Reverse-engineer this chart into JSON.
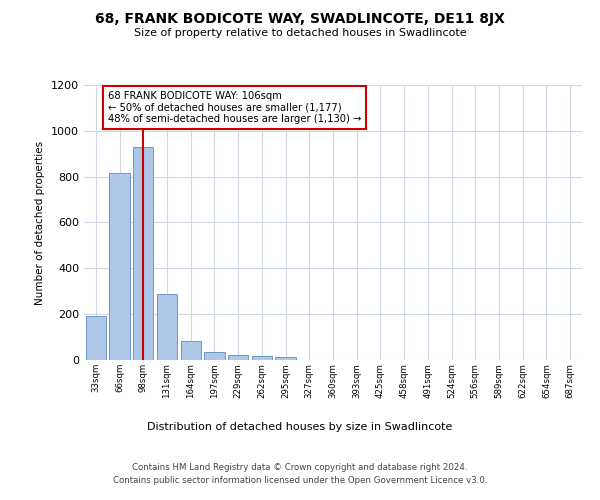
{
  "title": "68, FRANK BODICOTE WAY, SWADLINCOTE, DE11 8JX",
  "subtitle": "Size of property relative to detached houses in Swadlincote",
  "xlabel": "Distribution of detached houses by size in Swadlincote",
  "ylabel": "Number of detached properties",
  "bin_labels": [
    "33sqm",
    "66sqm",
    "98sqm",
    "131sqm",
    "164sqm",
    "197sqm",
    "229sqm",
    "262sqm",
    "295sqm",
    "327sqm",
    "360sqm",
    "393sqm",
    "425sqm",
    "458sqm",
    "491sqm",
    "524sqm",
    "556sqm",
    "589sqm",
    "622sqm",
    "654sqm",
    "687sqm"
  ],
  "bar_values": [
    190,
    815,
    930,
    290,
    85,
    35,
    20,
    18,
    12,
    0,
    0,
    0,
    0,
    0,
    0,
    0,
    0,
    0,
    0,
    0,
    0
  ],
  "bar_color": "#aec6e8",
  "bar_edge_color": "#5a8fc0",
  "ylim": [
    0,
    1200
  ],
  "yticks": [
    0,
    200,
    400,
    600,
    800,
    1000,
    1200
  ],
  "property_bin_index": 2,
  "vline_color": "#cc0000",
  "annotation_text": "68 FRANK BODICOTE WAY: 106sqm\n← 50% of detached houses are smaller (1,177)\n48% of semi-detached houses are larger (1,130) →",
  "annotation_box_color": "#ffffff",
  "annotation_box_edge": "#cc0000",
  "footer_line1": "Contains HM Land Registry data © Crown copyright and database right 2024.",
  "footer_line2": "Contains public sector information licensed under the Open Government Licence v3.0.",
  "background_color": "#ffffff",
  "grid_color": "#d0d8e8"
}
